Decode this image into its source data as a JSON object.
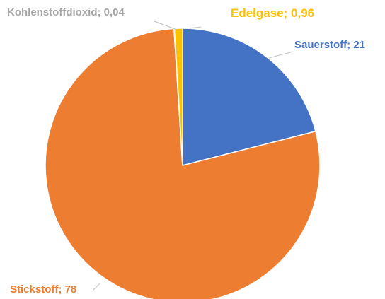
{
  "chart_data": {
    "type": "pie",
    "title": "",
    "legend": "none",
    "grid": false,
    "slices": [
      {
        "name": "Sauerstoff",
        "value": 21,
        "label": "Sauerstoff; 21",
        "color": "#4472c4",
        "label_color": "#4472c4"
      },
      {
        "name": "Stickstoff",
        "value": 78,
        "label": "Stickstoff; 78",
        "color": "#ed7d31",
        "label_color": "#ed7d31"
      },
      {
        "name": "Kohlenstoffdioxid",
        "value": 0.04,
        "label": "Kohlenstoffdioxid; 0,04",
        "color": "#a5a5a5",
        "label_color": "#a5a5a5"
      },
      {
        "name": "Edelgase",
        "value": 0.96,
        "label": "Edelgase; 0,96",
        "color": "#ffc000",
        "label_color": "#ffc000"
      }
    ]
  }
}
